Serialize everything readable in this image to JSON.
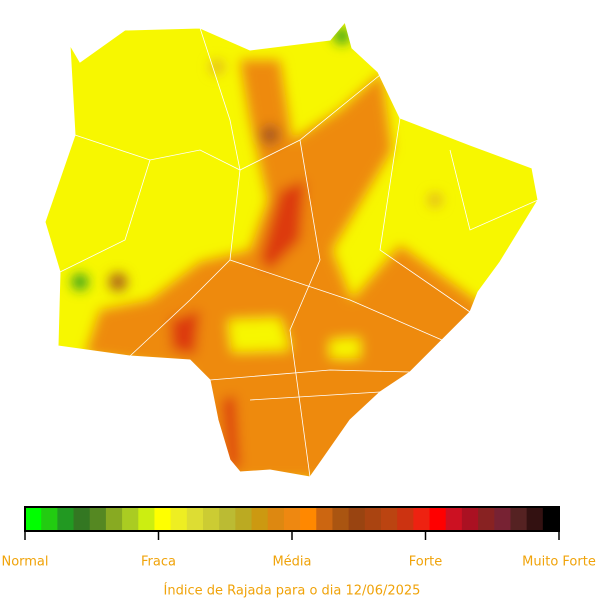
{
  "legend": {
    "labels": [
      "Normal",
      "Fraca",
      "Média",
      "Forte",
      "Muito Forte"
    ],
    "colors": [
      "#00ff00",
      "#22cc11",
      "#229922",
      "#337722",
      "#558822",
      "#88aa22",
      "#aacc22",
      "#ccee11",
      "#ffff00",
      "#eeee22",
      "#dddd33",
      "#cccc33",
      "#bbbb33",
      "#bbaa22",
      "#cc9911",
      "#dd8811",
      "#ee8811",
      "#ff8800",
      "#cc6611",
      "#aa5511",
      "#994411",
      "#aa4411",
      "#bb4411",
      "#cc3311",
      "#ee2211",
      "#ff0000",
      "#cc1122",
      "#aa1122",
      "#882222",
      "#772233",
      "#552222",
      "#331111",
      "#000000"
    ]
  },
  "caption": "Índice de Rajada para o dia 12/06/2025"
}
